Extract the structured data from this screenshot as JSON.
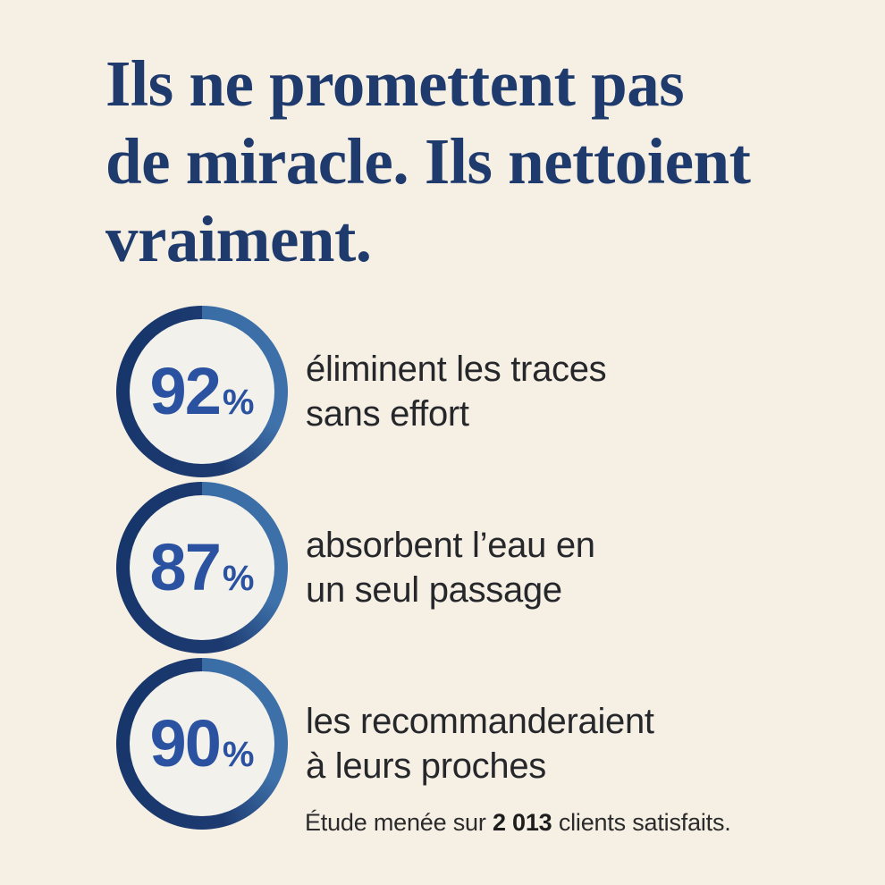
{
  "page": {
    "background": "#f5efe4",
    "title": {
      "full": "Ils ne promettent pas de miracle. Ils nettoient vraiment.",
      "lines": [
        "Ils ne promettent pas",
        "de miracle. Ils nettoient",
        "vraiment."
      ],
      "color": "#1f3a6c"
    }
  },
  "stats": [
    {
      "value": "92",
      "unit": "%",
      "line1": "éliminent les traces",
      "line2": "sans effort"
    },
    {
      "value": "87",
      "unit": "%",
      "line1": "absorbent l’eau en",
      "line2": "un seul passage"
    },
    {
      "value": "90",
      "unit": "%",
      "line1": "les recommanderaient",
      "line2": "à leurs proches"
    }
  ],
  "footnote": {
    "prefix": "Étude menée sur ",
    "emphasis": "2 013",
    "suffix": " clients satisfaits."
  },
  "colors": {
    "background": "#f5efe4",
    "title_navy": "#1f3a6c",
    "ring_dark": "#1c3a70",
    "ring_light": "#3a6da6",
    "circle_fill": "#f3f1ec",
    "value_blue": "#2a52a0",
    "text_dark": "#26272b"
  },
  "chart_data": {
    "type": "table",
    "title": "Ils ne promettent pas de miracle. Ils nettoient vraiment.",
    "categories": [
      "éliminent les traces sans effort",
      "absorbent l’eau en un seul passage",
      "les recommanderaient à leurs proches"
    ],
    "values": [
      92,
      87,
      90
    ],
    "unit": "%",
    "legend_position": "none",
    "source_note": "Étude menée sur 2 013 clients satisfaits.",
    "sample_size": "2 013"
  }
}
